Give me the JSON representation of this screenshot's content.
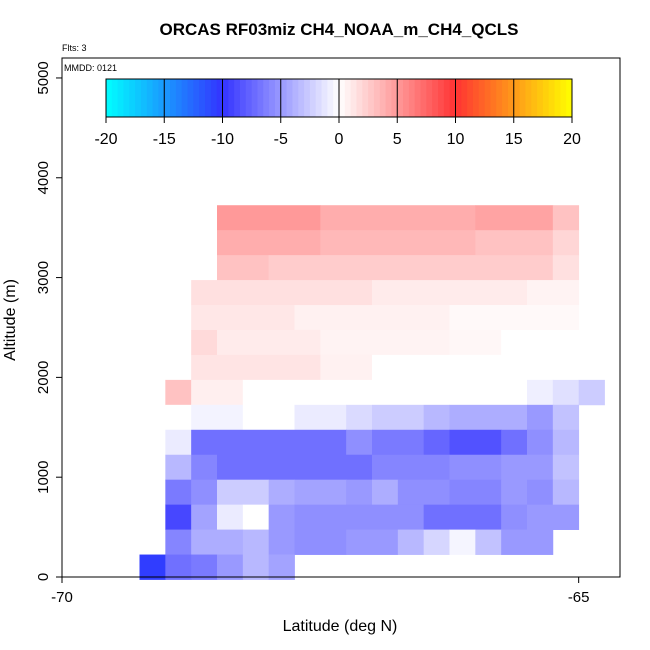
{
  "chart_data": {
    "type": "heatmap",
    "title": "ORCAS RF03miz CH4_NOAA_m_CH4_QCLS",
    "annotations": {
      "flts": "Flts: 3",
      "mmdd": "MMDD: 0121"
    },
    "xlabel": "Latitude (deg N)",
    "ylabel": "Altitude (m)",
    "xlim": [
      -70,
      -64.6
    ],
    "ylim": [
      0,
      5200
    ],
    "x_ticks": [
      -70,
      -65
    ],
    "x_tick_labels": [
      "-70",
      "-65"
    ],
    "y_ticks": [
      0,
      1000,
      2000,
      3000,
      4000,
      5000
    ],
    "y_tick_labels": [
      "0",
      "1000",
      "2000",
      "3000",
      "4000",
      "5000"
    ],
    "colorbar": {
      "min": -20,
      "max": 20,
      "ticks": [
        -20,
        -15,
        -10,
        -5,
        0,
        5,
        10,
        15,
        20
      ],
      "tick_labels": [
        "-20",
        "-15",
        "-10",
        "-5",
        "0",
        "5",
        "10",
        "15",
        "20"
      ],
      "colors": [
        "#00ffff",
        "#3333ff",
        "#ffffff",
        "#ff3333",
        "#ffff00"
      ]
    },
    "cell_height": 250,
    "rows": [
      {
        "y": 3600,
        "cells": [
          [
            -68.5,
            -67.5,
            5
          ],
          [
            -67.5,
            -66.0,
            4
          ],
          [
            -66.0,
            -65.25,
            4.5
          ],
          [
            -65.25,
            -65.0,
            3
          ]
        ]
      },
      {
        "y": 3350,
        "cells": [
          [
            -68.5,
            -67.5,
            4
          ],
          [
            -67.5,
            -66.0,
            3.5
          ],
          [
            -66.0,
            -65.25,
            3
          ],
          [
            -65.25,
            -65.0,
            2
          ]
        ]
      },
      {
        "y": 3100,
        "cells": [
          [
            -68.5,
            -68.0,
            3
          ],
          [
            -68.0,
            -65.25,
            2.5
          ],
          [
            -65.25,
            -65.0,
            1.5
          ]
        ]
      },
      {
        "y": 2850,
        "cells": [
          [
            -68.75,
            -67.0,
            1.5
          ],
          [
            -67.0,
            -65.5,
            1.0
          ],
          [
            -65.5,
            -65.0,
            0.6
          ]
        ]
      },
      {
        "y": 2600,
        "cells": [
          [
            -68.75,
            -67.75,
            1.2
          ],
          [
            -67.75,
            -66.25,
            0.7
          ],
          [
            -66.25,
            -65.0,
            0.3
          ]
        ]
      },
      {
        "y": 2350,
        "cells": [
          [
            -68.75,
            -68.5,
            1.8
          ],
          [
            -68.5,
            -67.5,
            1.0
          ],
          [
            -67.5,
            -66.25,
            0.6
          ],
          [
            -66.25,
            -65.75,
            0.4
          ],
          [
            -65.75,
            -65.0,
            0
          ]
        ]
      },
      {
        "y": 2100,
        "cells": [
          [
            -68.75,
            -67.5,
            1.3
          ],
          [
            -67.5,
            -67.0,
            0.7
          ],
          [
            -67.0,
            -65.25,
            0
          ]
        ]
      },
      {
        "y": 1850,
        "cells": [
          [
            -69.0,
            -68.75,
            3
          ],
          [
            -68.75,
            -68.25,
            0.8
          ],
          [
            -68.25,
            -65.5,
            0
          ],
          [
            -65.5,
            -65.25,
            -0.8
          ],
          [
            -65.25,
            -65.0,
            -1.5
          ],
          [
            -65.0,
            -64.75,
            -2.5
          ]
        ]
      },
      {
        "y": 1600,
        "cells": [
          [
            -69.0,
            -68.75,
            0
          ],
          [
            -68.75,
            -68.25,
            -0.6
          ],
          [
            -68.25,
            -67.75,
            0
          ],
          [
            -67.75,
            -67.25,
            -1.0
          ],
          [
            -67.25,
            -67.0,
            -1.8
          ],
          [
            -67.0,
            -66.5,
            -2.5
          ],
          [
            -66.5,
            -66.25,
            -3.5
          ],
          [
            -66.25,
            -65.5,
            -4.0
          ],
          [
            -65.5,
            -65.25,
            -5.0
          ],
          [
            -65.25,
            -65.0,
            -3.0
          ]
        ]
      },
      {
        "y": 1350,
        "cells": [
          [
            -69.0,
            -68.75,
            -1.0
          ],
          [
            -68.75,
            -67.25,
            -7.0
          ],
          [
            -67.25,
            -67.0,
            -5.5
          ],
          [
            -67.0,
            -66.5,
            -6.5
          ],
          [
            -66.5,
            -66.25,
            -7.5
          ],
          [
            -66.25,
            -65.75,
            -8.5
          ],
          [
            -65.75,
            -65.5,
            -7.0
          ],
          [
            -65.5,
            -65.25,
            -5.5
          ],
          [
            -65.25,
            -65.0,
            -3.5
          ]
        ]
      },
      {
        "y": 1100,
        "cells": [
          [
            -69.0,
            -68.75,
            -3.5
          ],
          [
            -68.75,
            -68.5,
            -6.0
          ],
          [
            -68.5,
            -67.0,
            -7.0
          ],
          [
            -67.0,
            -66.25,
            -6.0
          ],
          [
            -66.25,
            -65.75,
            -5.5
          ],
          [
            -65.75,
            -65.25,
            -5.0
          ],
          [
            -65.25,
            -65.0,
            -3.0
          ]
        ]
      },
      {
        "y": 850,
        "cells": [
          [
            -69.0,
            -68.75,
            -6.5
          ],
          [
            -68.75,
            -68.5,
            -5.5
          ],
          [
            -68.5,
            -68.0,
            -2.5
          ],
          [
            -68.0,
            -67.75,
            -4.0
          ],
          [
            -67.75,
            -67.25,
            -4.5
          ],
          [
            -67.25,
            -67.0,
            -5.0
          ],
          [
            -67.0,
            -66.75,
            -4.0
          ],
          [
            -66.75,
            -66.25,
            -5.5
          ],
          [
            -66.25,
            -65.75,
            -6.0
          ],
          [
            -65.75,
            -65.5,
            -5.0
          ],
          [
            -65.5,
            -65.25,
            -5.5
          ],
          [
            -65.25,
            -65.0,
            -3.5
          ]
        ]
      },
      {
        "y": 600,
        "cells": [
          [
            -69.0,
            -68.75,
            -9.0
          ],
          [
            -68.75,
            -68.5,
            -4.5
          ],
          [
            -68.5,
            -68.25,
            -1.0
          ],
          [
            -68.25,
            -68.0,
            0
          ],
          [
            -68.0,
            -67.75,
            -5.0
          ],
          [
            -67.75,
            -67.25,
            -5.5
          ],
          [
            -67.25,
            -66.5,
            -5.5
          ],
          [
            -66.5,
            -65.75,
            -7.0
          ],
          [
            -65.75,
            -65.5,
            -5.5
          ],
          [
            -65.5,
            -65.0,
            -5.0
          ]
        ]
      },
      {
        "y": 350,
        "cells": [
          [
            -69.0,
            -68.75,
            -6.0
          ],
          [
            -68.75,
            -68.25,
            -4.0
          ],
          [
            -68.25,
            -68.0,
            -3.5
          ],
          [
            -68.0,
            -67.75,
            -5.0
          ],
          [
            -67.75,
            -67.25,
            -5.5
          ],
          [
            -67.25,
            -66.75,
            -5.0
          ],
          [
            -66.75,
            -66.5,
            -3.5
          ],
          [
            -66.5,
            -66.25,
            -2.0
          ],
          [
            -66.25,
            -66.0,
            -0.5
          ],
          [
            -66.0,
            -65.75,
            -3.0
          ],
          [
            -65.75,
            -65.25,
            -5.0
          ]
        ]
      },
      {
        "y": 100,
        "cells": [
          [
            -69.25,
            -69.0,
            -10.5
          ],
          [
            -69.0,
            -68.75,
            -7.0
          ],
          [
            -68.75,
            -68.5,
            -6.5
          ],
          [
            -68.5,
            -68.25,
            -5.0
          ],
          [
            -68.25,
            -68.0,
            -3.5
          ],
          [
            -68.0,
            -67.75,
            -4.5
          ]
        ]
      }
    ]
  }
}
